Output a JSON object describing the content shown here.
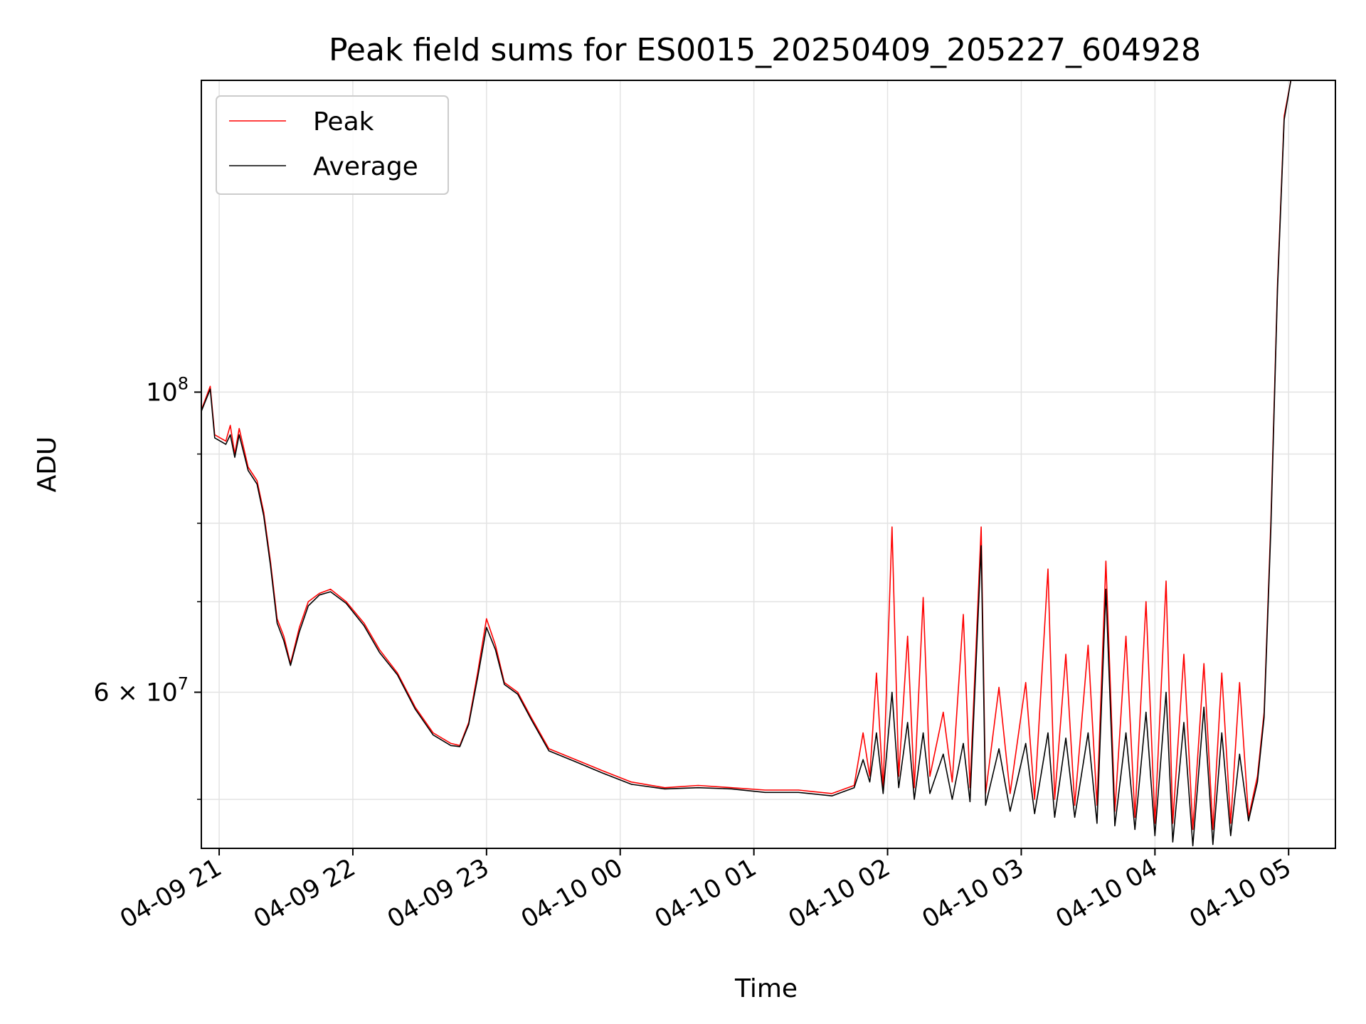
{
  "chart_data": {
    "type": "line",
    "title": "Peak field sums for ES0015_20250409_205227_604928",
    "xlabel": "Time",
    "ylabel": "ADU",
    "yscale": "log",
    "grid": true,
    "legend_position": "upper-left",
    "xlim": [
      "2025-04-09T20:52",
      "2025-04-10T05:21"
    ],
    "ylim": [
      46000000,
      170000000
    ],
    "x_ticks": [
      {
        "value": "2025-04-09T21:00",
        "label": "04-09 21"
      },
      {
        "value": "2025-04-09T22:00",
        "label": "04-09 22"
      },
      {
        "value": "2025-04-09T23:00",
        "label": "04-09 23"
      },
      {
        "value": "2025-04-10T00:00",
        "label": "04-10 00"
      },
      {
        "value": "2025-04-10T01:00",
        "label": "04-10 01"
      },
      {
        "value": "2025-04-10T02:00",
        "label": "04-10 02"
      },
      {
        "value": "2025-04-10T03:00",
        "label": "04-10 03"
      },
      {
        "value": "2025-04-10T04:00",
        "label": "04-10 04"
      },
      {
        "value": "2025-04-10T05:00",
        "label": "04-10 05"
      }
    ],
    "y_ticks_major": [
      {
        "value": 60000000,
        "base": "6 × 10",
        "exp": "7"
      },
      {
        "value": 100000000,
        "base": "10",
        "exp": "8"
      }
    ],
    "y_ticks_minor": [
      50000000,
      70000000,
      80000000,
      90000000
    ],
    "series": [
      {
        "name": "Peak",
        "color": "#ff0000",
        "points": [
          [
            "2025-04-09T20:52",
            97.0
          ],
          [
            "2025-04-09T20:56",
            101.0
          ],
          [
            "2025-04-09T20:58",
            93.0
          ],
          [
            "2025-04-09T21:03",
            92.0
          ],
          [
            "2025-04-09T21:05",
            94.5
          ],
          [
            "2025-04-09T21:07",
            90.0
          ],
          [
            "2025-04-09T21:09",
            94.0
          ],
          [
            "2025-04-09T21:13",
            88.0
          ],
          [
            "2025-04-09T21:17",
            86.0
          ],
          [
            "2025-04-09T21:20",
            81.5
          ],
          [
            "2025-04-09T21:23",
            75.0
          ],
          [
            "2025-04-09T21:26",
            68.0
          ],
          [
            "2025-04-09T21:29",
            66.0
          ],
          [
            "2025-04-09T21:32",
            63.0
          ],
          [
            "2025-04-09T21:36",
            67.0
          ],
          [
            "2025-04-09T21:40",
            70.0
          ],
          [
            "2025-04-09T21:45",
            71.0
          ],
          [
            "2025-04-09T21:50",
            71.5
          ],
          [
            "2025-04-09T21:57",
            70.0
          ],
          [
            "2025-04-09T22:05",
            67.5
          ],
          [
            "2025-04-09T22:12",
            64.5
          ],
          [
            "2025-04-09T22:20",
            62.0
          ],
          [
            "2025-04-09T22:28",
            58.5
          ],
          [
            "2025-04-09T22:36",
            56.0
          ],
          [
            "2025-04-09T22:44",
            55.0
          ],
          [
            "2025-04-09T22:48",
            54.8
          ],
          [
            "2025-04-09T22:52",
            57.0
          ],
          [
            "2025-04-09T22:56",
            62.0
          ],
          [
            "2025-04-09T23:00",
            68.0
          ],
          [
            "2025-04-09T23:04",
            65.0
          ],
          [
            "2025-04-09T23:08",
            61.0
          ],
          [
            "2025-04-09T23:14",
            60.0
          ],
          [
            "2025-04-09T23:20",
            57.5
          ],
          [
            "2025-04-09T23:28",
            54.5
          ],
          [
            "2025-04-09T23:40",
            53.5
          ],
          [
            "2025-04-09T23:52",
            52.5
          ],
          [
            "2025-04-10T00:05",
            51.5
          ],
          [
            "2025-04-10T00:20",
            51.0
          ],
          [
            "2025-04-10T00:35",
            51.2
          ],
          [
            "2025-04-10T00:50",
            51.0
          ],
          [
            "2025-04-10T01:05",
            50.8
          ],
          [
            "2025-04-10T01:20",
            50.8
          ],
          [
            "2025-04-10T01:35",
            50.5
          ],
          [
            "2025-04-10T01:45",
            51.2
          ],
          [
            "2025-04-10T01:49",
            56.0
          ],
          [
            "2025-04-10T01:52",
            52.0
          ],
          [
            "2025-04-10T01:55",
            62.0
          ],
          [
            "2025-04-10T01:58",
            51.0
          ],
          [
            "2025-04-10T02:02",
            79.5
          ],
          [
            "2025-04-10T02:05",
            52.0
          ],
          [
            "2025-04-10T02:09",
            66.0
          ],
          [
            "2025-04-10T02:12",
            51.0
          ],
          [
            "2025-04-10T02:16",
            70.5
          ],
          [
            "2025-04-10T02:19",
            52.0
          ],
          [
            "2025-04-10T02:25",
            58.0
          ],
          [
            "2025-04-10T02:29",
            51.5
          ],
          [
            "2025-04-10T02:34",
            68.5
          ],
          [
            "2025-04-10T02:37",
            51.0
          ],
          [
            "2025-04-10T02:42",
            79.5
          ],
          [
            "2025-04-10T02:44",
            50.5
          ],
          [
            "2025-04-10T02:50",
            60.5
          ],
          [
            "2025-04-10T02:55",
            50.5
          ],
          [
            "2025-04-10T03:02",
            61.0
          ],
          [
            "2025-04-10T03:06",
            50.0
          ],
          [
            "2025-04-10T03:12",
            74.0
          ],
          [
            "2025-04-10T03:15",
            50.0
          ],
          [
            "2025-04-10T03:20",
            64.0
          ],
          [
            "2025-04-10T03:24",
            49.5
          ],
          [
            "2025-04-10T03:30",
            65.0
          ],
          [
            "2025-04-10T03:34",
            49.5
          ],
          [
            "2025-04-10T03:38",
            75.0
          ],
          [
            "2025-04-10T03:42",
            49.0
          ],
          [
            "2025-04-10T03:47",
            66.0
          ],
          [
            "2025-04-10T03:51",
            48.5
          ],
          [
            "2025-04-10T03:56",
            70.0
          ],
          [
            "2025-04-10T04:00",
            48.0
          ],
          [
            "2025-04-10T04:05",
            72.5
          ],
          [
            "2025-04-10T04:08",
            48.0
          ],
          [
            "2025-04-10T04:13",
            64.0
          ],
          [
            "2025-04-10T04:17",
            47.5
          ],
          [
            "2025-04-10T04:22",
            63.0
          ],
          [
            "2025-04-10T04:26",
            47.5
          ],
          [
            "2025-04-10T04:30",
            62.0
          ],
          [
            "2025-04-10T04:34",
            48.0
          ],
          [
            "2025-04-10T04:38",
            61.0
          ],
          [
            "2025-04-10T04:42",
            48.5
          ],
          [
            "2025-04-10T04:46",
            52.0
          ],
          [
            "2025-04-10T04:49",
            58.0
          ],
          [
            "2025-04-10T04:52",
            80.0
          ],
          [
            "2025-04-10T04:55",
            120.0
          ],
          [
            "2025-04-10T04:58",
            160.0
          ],
          [
            "2025-04-10T05:01",
            170.0
          ]
        ]
      },
      {
        "name": "Average",
        "color": "#000000",
        "points": [
          [
            "2025-04-09T20:52",
            96.8
          ],
          [
            "2025-04-09T20:56",
            100.5
          ],
          [
            "2025-04-09T20:58",
            92.5
          ],
          [
            "2025-04-09T21:03",
            91.5
          ],
          [
            "2025-04-09T21:05",
            93.0
          ],
          [
            "2025-04-09T21:07",
            89.5
          ],
          [
            "2025-04-09T21:09",
            93.0
          ],
          [
            "2025-04-09T21:13",
            87.5
          ],
          [
            "2025-04-09T21:17",
            85.5
          ],
          [
            "2025-04-09T21:20",
            81.0
          ],
          [
            "2025-04-09T21:23",
            74.5
          ],
          [
            "2025-04-09T21:26",
            67.5
          ],
          [
            "2025-04-09T21:29",
            65.5
          ],
          [
            "2025-04-09T21:32",
            62.8
          ],
          [
            "2025-04-09T21:36",
            66.5
          ],
          [
            "2025-04-09T21:40",
            69.5
          ],
          [
            "2025-04-09T21:45",
            70.8
          ],
          [
            "2025-04-09T21:50",
            71.2
          ],
          [
            "2025-04-09T21:57",
            69.8
          ],
          [
            "2025-04-09T22:05",
            67.2
          ],
          [
            "2025-04-09T22:12",
            64.2
          ],
          [
            "2025-04-09T22:20",
            61.8
          ],
          [
            "2025-04-09T22:28",
            58.3
          ],
          [
            "2025-04-09T22:36",
            55.8
          ],
          [
            "2025-04-09T22:44",
            54.8
          ],
          [
            "2025-04-09T22:48",
            54.7
          ],
          [
            "2025-04-09T22:52",
            56.8
          ],
          [
            "2025-04-09T22:56",
            61.5
          ],
          [
            "2025-04-09T23:00",
            67.0
          ],
          [
            "2025-04-09T23:04",
            64.5
          ],
          [
            "2025-04-09T23:08",
            60.8
          ],
          [
            "2025-04-09T23:14",
            59.8
          ],
          [
            "2025-04-09T23:20",
            57.3
          ],
          [
            "2025-04-09T23:28",
            54.3
          ],
          [
            "2025-04-09T23:40",
            53.3
          ],
          [
            "2025-04-09T23:52",
            52.3
          ],
          [
            "2025-04-10T00:05",
            51.3
          ],
          [
            "2025-04-10T00:20",
            50.9
          ],
          [
            "2025-04-10T00:35",
            51.0
          ],
          [
            "2025-04-10T00:50",
            50.9
          ],
          [
            "2025-04-10T01:05",
            50.6
          ],
          [
            "2025-04-10T01:20",
            50.6
          ],
          [
            "2025-04-10T01:35",
            50.3
          ],
          [
            "2025-04-10T01:45",
            51.0
          ],
          [
            "2025-04-10T01:49",
            53.5
          ],
          [
            "2025-04-10T01:52",
            51.5
          ],
          [
            "2025-04-10T01:55",
            56.0
          ],
          [
            "2025-04-10T01:58",
            50.5
          ],
          [
            "2025-04-10T02:02",
            60.0
          ],
          [
            "2025-04-10T02:05",
            51.0
          ],
          [
            "2025-04-10T02:09",
            57.0
          ],
          [
            "2025-04-10T02:12",
            50.0
          ],
          [
            "2025-04-10T02:16",
            56.0
          ],
          [
            "2025-04-10T02:19",
            50.5
          ],
          [
            "2025-04-10T02:25",
            54.0
          ],
          [
            "2025-04-10T02:29",
            50.0
          ],
          [
            "2025-04-10T02:34",
            55.0
          ],
          [
            "2025-04-10T02:37",
            49.8
          ],
          [
            "2025-04-10T02:42",
            77.0
          ],
          [
            "2025-04-10T02:44",
            49.5
          ],
          [
            "2025-04-10T02:50",
            54.5
          ],
          [
            "2025-04-10T02:55",
            49.0
          ],
          [
            "2025-04-10T03:02",
            55.0
          ],
          [
            "2025-04-10T03:06",
            48.8
          ],
          [
            "2025-04-10T03:12",
            56.0
          ],
          [
            "2025-04-10T03:15",
            48.5
          ],
          [
            "2025-04-10T03:20",
            55.5
          ],
          [
            "2025-04-10T03:24",
            48.5
          ],
          [
            "2025-04-10T03:30",
            56.0
          ],
          [
            "2025-04-10T03:34",
            48.0
          ],
          [
            "2025-04-10T03:38",
            71.5
          ],
          [
            "2025-04-10T03:42",
            47.8
          ],
          [
            "2025-04-10T03:47",
            56.0
          ],
          [
            "2025-04-10T03:51",
            47.5
          ],
          [
            "2025-04-10T03:56",
            58.0
          ],
          [
            "2025-04-10T04:00",
            47.0
          ],
          [
            "2025-04-10T04:05",
            60.0
          ],
          [
            "2025-04-10T04:08",
            46.5
          ],
          [
            "2025-04-10T04:13",
            57.0
          ],
          [
            "2025-04-10T04:17",
            46.2
          ],
          [
            "2025-04-10T04:22",
            58.5
          ],
          [
            "2025-04-10T04:26",
            46.3
          ],
          [
            "2025-04-10T04:30",
            56.0
          ],
          [
            "2025-04-10T04:34",
            47.0
          ],
          [
            "2025-04-10T04:38",
            54.0
          ],
          [
            "2025-04-10T04:42",
            48.2
          ],
          [
            "2025-04-10T04:46",
            51.5
          ],
          [
            "2025-04-10T04:49",
            57.5
          ],
          [
            "2025-04-10T04:52",
            79.0
          ],
          [
            "2025-04-10T04:55",
            119.0
          ],
          [
            "2025-04-10T04:58",
            159.0
          ],
          [
            "2025-04-10T05:01",
            170.0
          ]
        ]
      }
    ],
    "y_values_unit": "million ADU"
  }
}
